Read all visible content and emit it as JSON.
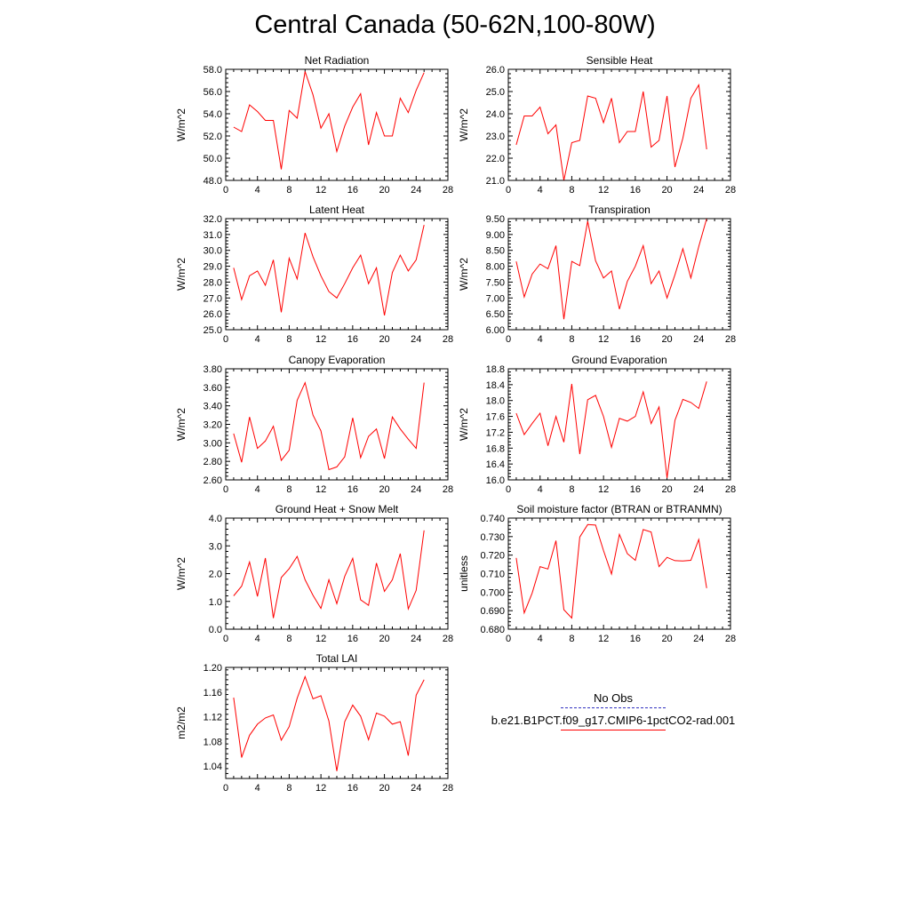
{
  "title": "Central Canada (50-62N,100-80W)",
  "legend": {
    "obs_label": "No Obs",
    "model_label": "b.e21.B1PCT.f09_g17.CMIP6-1pctCO2-rad.001",
    "obs_color": "#3030c0",
    "model_color": "#ff0000"
  },
  "chart_data": [
    {
      "type": "line",
      "title": "Net Radiation",
      "ylabel": "W/m^2",
      "xlim": [
        0,
        28
      ],
      "ylim": [
        48,
        58
      ],
      "xticks": [
        "0",
        "4",
        "8",
        "12",
        "16",
        "20",
        "24",
        "28"
      ],
      "yticks": [
        "48.0",
        "50.0",
        "52.0",
        "54.0",
        "56.0",
        "58.0"
      ],
      "x": [
        1,
        2,
        3,
        4,
        5,
        6,
        7,
        8,
        9,
        10,
        11,
        12,
        13,
        14,
        15,
        16,
        17,
        18,
        19,
        20,
        21,
        22,
        23,
        24,
        25
      ],
      "series": [
        {
          "color": "#ff0000",
          "values": [
            52.8,
            52.4,
            54.8,
            54.2,
            53.4,
            53.4,
            49.0,
            54.3,
            53.6,
            57.8,
            55.7,
            52.7,
            54.0,
            50.6,
            52.9,
            54.6,
            55.8,
            51.2,
            54.1,
            52.0,
            52.0,
            55.4,
            54.1,
            56.1,
            57.7
          ]
        }
      ]
    },
    {
      "type": "line",
      "title": "Sensible Heat",
      "ylabel": "W/m^2",
      "xlim": [
        0,
        28
      ],
      "ylim": [
        21,
        26
      ],
      "xticks": [
        "0",
        "4",
        "8",
        "12",
        "16",
        "20",
        "24",
        "28"
      ],
      "yticks": [
        "21.0",
        "22.0",
        "23.0",
        "24.0",
        "25.0",
        "26.0"
      ],
      "x": [
        1,
        2,
        3,
        4,
        5,
        6,
        7,
        8,
        9,
        10,
        11,
        12,
        13,
        14,
        15,
        16,
        17,
        18,
        19,
        20,
        21,
        22,
        23,
        24,
        25
      ],
      "series": [
        {
          "color": "#ff0000",
          "values": [
            22.6,
            23.9,
            23.9,
            24.3,
            23.1,
            23.5,
            21.0,
            22.7,
            22.8,
            24.8,
            24.7,
            23.6,
            24.7,
            22.7,
            23.2,
            23.2,
            25.0,
            22.5,
            22.8,
            24.8,
            21.6,
            22.9,
            24.7,
            25.3,
            22.4
          ]
        }
      ]
    },
    {
      "type": "line",
      "title": "Latent Heat",
      "ylabel": "W/m^2",
      "xlim": [
        0,
        28
      ],
      "ylim": [
        25,
        32
      ],
      "xticks": [
        "0",
        "4",
        "8",
        "12",
        "16",
        "20",
        "24",
        "28"
      ],
      "yticks": [
        "25.0",
        "26.0",
        "27.0",
        "28.0",
        "29.0",
        "30.0",
        "31.0",
        "32.0"
      ],
      "x": [
        1,
        2,
        3,
        4,
        5,
        6,
        7,
        8,
        9,
        10,
        11,
        12,
        13,
        14,
        15,
        16,
        17,
        18,
        19,
        20,
        21,
        22,
        23,
        24,
        25
      ],
      "series": [
        {
          "color": "#ff0000",
          "values": [
            28.9,
            26.9,
            28.4,
            28.7,
            27.8,
            29.4,
            26.1,
            29.5,
            28.2,
            31.1,
            29.6,
            28.4,
            27.4,
            27.0,
            27.9,
            28.9,
            29.7,
            27.9,
            28.9,
            25.9,
            28.6,
            29.7,
            28.7,
            29.4,
            31.6
          ]
        }
      ]
    },
    {
      "type": "line",
      "title": "Transpiration",
      "ylabel": "W/m^2",
      "xlim": [
        0,
        28
      ],
      "ylim": [
        6,
        9.5
      ],
      "xticks": [
        "0",
        "4",
        "8",
        "12",
        "16",
        "20",
        "24",
        "28"
      ],
      "yticks": [
        "6.00",
        "6.50",
        "7.00",
        "7.50",
        "8.00",
        "8.50",
        "9.00",
        "9.50"
      ],
      "x": [
        1,
        2,
        3,
        4,
        5,
        6,
        7,
        8,
        9,
        10,
        11,
        12,
        13,
        14,
        15,
        16,
        17,
        18,
        19,
        20,
        21,
        22,
        23,
        24,
        25
      ],
      "series": [
        {
          "color": "#ff0000",
          "values": [
            8.15,
            7.03,
            7.75,
            8.07,
            7.92,
            8.65,
            6.33,
            8.15,
            8.02,
            9.42,
            8.17,
            7.63,
            7.85,
            6.65,
            7.52,
            8.0,
            8.65,
            7.45,
            7.85,
            7.0,
            7.73,
            8.55,
            7.63,
            8.62,
            9.5
          ]
        }
      ]
    },
    {
      "type": "line",
      "title": "Canopy Evaporation",
      "ylabel": "W/m^2",
      "xlim": [
        0,
        28
      ],
      "ylim": [
        2.6,
        3.8
      ],
      "xticks": [
        "0",
        "4",
        "8",
        "12",
        "16",
        "20",
        "24",
        "28"
      ],
      "yticks": [
        "2.60",
        "2.80",
        "3.00",
        "3.20",
        "3.40",
        "3.60",
        "3.80"
      ],
      "x": [
        1,
        2,
        3,
        4,
        5,
        6,
        7,
        8,
        9,
        10,
        11,
        12,
        13,
        14,
        15,
        16,
        17,
        18,
        19,
        20,
        21,
        22,
        23,
        24,
        25
      ],
      "series": [
        {
          "color": "#ff0000",
          "values": [
            3.1,
            2.79,
            3.28,
            2.94,
            3.02,
            3.18,
            2.81,
            2.92,
            3.46,
            3.65,
            3.3,
            3.13,
            2.71,
            2.74,
            2.85,
            3.27,
            2.84,
            3.07,
            3.15,
            2.83,
            3.28,
            3.15,
            3.04,
            2.94,
            3.65
          ]
        }
      ]
    },
    {
      "type": "line",
      "title": "Ground Evaporation",
      "ylabel": "W/m^2",
      "xlim": [
        0,
        28
      ],
      "ylim": [
        16,
        18.8
      ],
      "xticks": [
        "0",
        "4",
        "8",
        "12",
        "16",
        "20",
        "24",
        "28"
      ],
      "yticks": [
        "16.0",
        "16.4",
        "16.8",
        "17.2",
        "17.6",
        "18.0",
        "18.4",
        "18.8"
      ],
      "x": [
        1,
        2,
        3,
        4,
        5,
        6,
        7,
        8,
        9,
        10,
        11,
        12,
        13,
        14,
        15,
        16,
        17,
        18,
        19,
        20,
        21,
        22,
        23,
        24,
        25
      ],
      "series": [
        {
          "color": "#ff0000",
          "values": [
            17.68,
            17.14,
            17.42,
            17.68,
            16.86,
            17.6,
            16.95,
            18.42,
            16.65,
            18.02,
            18.13,
            17.6,
            16.82,
            17.55,
            17.48,
            17.6,
            18.22,
            17.42,
            17.84,
            16.05,
            17.5,
            18.03,
            17.95,
            17.8,
            18.48
          ]
        }
      ]
    },
    {
      "type": "line",
      "title": "Ground Heat + Snow Melt",
      "ylabel": "W/m^2",
      "xlim": [
        0,
        28
      ],
      "ylim": [
        0,
        4
      ],
      "xticks": [
        "0",
        "4",
        "8",
        "12",
        "16",
        "20",
        "24",
        "28"
      ],
      "yticks": [
        "0.0",
        "1.0",
        "2.0",
        "3.0",
        "4.0"
      ],
      "x": [
        1,
        2,
        3,
        4,
        5,
        6,
        7,
        8,
        9,
        10,
        11,
        12,
        13,
        14,
        15,
        16,
        17,
        18,
        19,
        20,
        21,
        22,
        23,
        24,
        25
      ],
      "series": [
        {
          "color": "#ff0000",
          "values": [
            1.2,
            1.55,
            2.42,
            1.18,
            2.56,
            0.4,
            1.86,
            2.18,
            2.62,
            1.78,
            1.22,
            0.75,
            1.78,
            0.92,
            1.9,
            2.55,
            1.06,
            0.86,
            2.38,
            1.36,
            1.78,
            2.72,
            0.73,
            1.4,
            3.56
          ]
        }
      ]
    },
    {
      "type": "line",
      "title": "Soil moisture factor (BTRAN or BTRANMN)",
      "ylabel": "unitless",
      "xlim": [
        0,
        28
      ],
      "ylim": [
        0.68,
        0.74
      ],
      "xticks": [
        "0",
        "4",
        "8",
        "12",
        "16",
        "20",
        "24",
        "28"
      ],
      "yticks": [
        "0.680",
        "0.690",
        "0.700",
        "0.710",
        "0.720",
        "0.730",
        "0.740"
      ],
      "x": [
        1,
        2,
        3,
        4,
        5,
        6,
        7,
        8,
        9,
        10,
        11,
        12,
        13,
        14,
        15,
        16,
        17,
        18,
        19,
        20,
        21,
        22,
        23,
        24,
        25
      ],
      "series": [
        {
          "color": "#ff0000",
          "values": [
            0.7185,
            0.6888,
            0.6995,
            0.7138,
            0.7125,
            0.7278,
            0.6905,
            0.686,
            0.7298,
            0.7365,
            0.7362,
            0.7225,
            0.7098,
            0.7312,
            0.7208,
            0.7172,
            0.7338,
            0.7325,
            0.7138,
            0.7188,
            0.717,
            0.7168,
            0.7172,
            0.7285,
            0.7022
          ]
        }
      ]
    },
    {
      "type": "line",
      "title": "Total LAI",
      "ylabel": "m2/m2",
      "xlim": [
        0,
        28
      ],
      "ylim": [
        1.02,
        1.2
      ],
      "xticks": [
        "0",
        "4",
        "8",
        "12",
        "16",
        "20",
        "24",
        "28"
      ],
      "yticks": [
        "1.04",
        "1.08",
        "1.12",
        "1.16",
        "1.20"
      ],
      "x": [
        1,
        2,
        3,
        4,
        5,
        6,
        7,
        8,
        9,
        10,
        11,
        12,
        13,
        14,
        15,
        16,
        17,
        18,
        19,
        20,
        21,
        22,
        23,
        24,
        25
      ],
      "series": [
        {
          "color": "#ff0000",
          "values": [
            1.151,
            1.054,
            1.09,
            1.108,
            1.118,
            1.123,
            1.082,
            1.104,
            1.15,
            1.185,
            1.149,
            1.154,
            1.113,
            1.032,
            1.112,
            1.139,
            1.121,
            1.083,
            1.126,
            1.121,
            1.108,
            1.112,
            1.057,
            1.155,
            1.18
          ]
        }
      ]
    }
  ]
}
